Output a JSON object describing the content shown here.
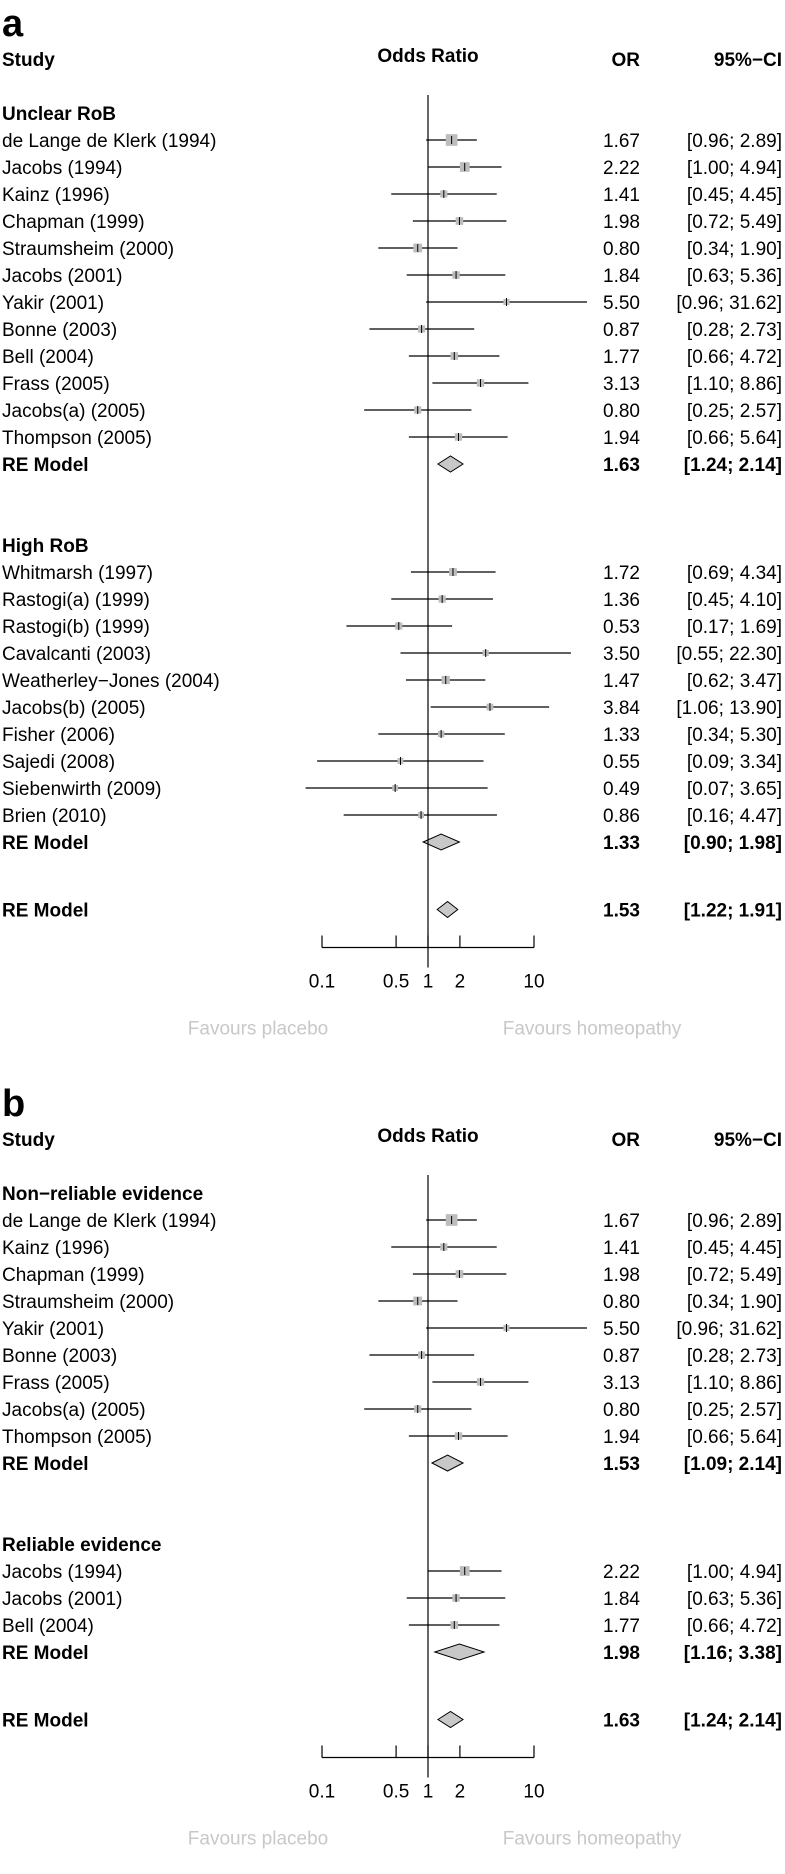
{
  "chart_data": [
    {
      "type": "forest",
      "panel": "a",
      "headers": {
        "study": "Study",
        "title": "Odds Ratio",
        "or": "OR",
        "ci": "95%−CI"
      },
      "groups": [
        {
          "label": "Unclear RoB",
          "studies": [
            {
              "name": "de Lange de Klerk (1994)",
              "or": 1.67,
              "lo": 0.96,
              "hi": 2.89,
              "weight": 3.2,
              "or_text": "1.67",
              "ci_text": "[0.96; 2.89]"
            },
            {
              "name": "Jacobs (1994)",
              "or": 2.22,
              "lo": 1.0,
              "hi": 4.94,
              "weight": 2.4,
              "or_text": "2.22",
              "ci_text": "[1.00; 4.94]"
            },
            {
              "name": "Kainz (1996)",
              "or": 1.41,
              "lo": 0.45,
              "hi": 4.45,
              "weight": 1.3,
              "or_text": "1.41",
              "ci_text": "[0.45; 4.45]"
            },
            {
              "name": "Chapman (1999)",
              "or": 1.98,
              "lo": 0.72,
              "hi": 5.49,
              "weight": 1.5,
              "or_text": "1.98",
              "ci_text": "[0.72; 5.49]"
            },
            {
              "name": "Straumsheim (2000)",
              "or": 0.8,
              "lo": 0.34,
              "hi": 1.9,
              "weight": 2.0,
              "or_text": "0.80",
              "ci_text": "[0.34; 1.90]"
            },
            {
              "name": "Jacobs (2001)",
              "or": 1.84,
              "lo": 0.63,
              "hi": 5.36,
              "weight": 1.4,
              "or_text": "1.84",
              "ci_text": "[0.63; 5.36]"
            },
            {
              "name": "Yakir (2001)",
              "or": 5.5,
              "lo": 0.96,
              "hi": 31.62,
              "weight": 0.9,
              "or_text": "5.50",
              "ci_text": "[0.96; 31.62]"
            },
            {
              "name": "Bonne (2003)",
              "or": 0.87,
              "lo": 0.28,
              "hi": 2.73,
              "weight": 1.3,
              "or_text": "0.87",
              "ci_text": "[0.28; 2.73]"
            },
            {
              "name": "Bell (2004)",
              "or": 1.77,
              "lo": 0.66,
              "hi": 4.72,
              "weight": 1.5,
              "or_text": "1.77",
              "ci_text": "[0.66; 4.72]"
            },
            {
              "name": "Frass (2005)",
              "or": 3.13,
              "lo": 1.1,
              "hi": 8.86,
              "weight": 1.4,
              "or_text": "3.13",
              "ci_text": "[1.10; 8.86]"
            },
            {
              "name": "Jacobs(a) (2005)",
              "or": 0.8,
              "lo": 0.25,
              "hi": 2.57,
              "weight": 1.3,
              "or_text": "0.80",
              "ci_text": "[0.25; 2.57]"
            },
            {
              "name": "Thompson (2005)",
              "or": 1.94,
              "lo": 0.66,
              "hi": 5.64,
              "weight": 1.4,
              "or_text": "1.94",
              "ci_text": "[0.66; 5.64]"
            }
          ],
          "re_model": {
            "label": "RE Model",
            "or": 1.63,
            "lo": 1.24,
            "hi": 2.14,
            "or_text": "1.63",
            "ci_text": "[1.24; 2.14]"
          }
        },
        {
          "label": "High RoB",
          "studies": [
            {
              "name": "Whitmarsh (1997)",
              "or": 1.72,
              "lo": 0.69,
              "hi": 4.34,
              "weight": 1.6,
              "or_text": "1.72",
              "ci_text": "[0.69; 4.34]"
            },
            {
              "name": "Rastogi(a) (1999)",
              "or": 1.36,
              "lo": 0.45,
              "hi": 4.1,
              "weight": 1.3,
              "or_text": "1.36",
              "ci_text": "[0.45; 4.10]"
            },
            {
              "name": "Rastogi(b) (1999)",
              "or": 0.53,
              "lo": 0.17,
              "hi": 1.69,
              "weight": 1.3,
              "or_text": "0.53",
              "ci_text": "[0.17; 1.69]"
            },
            {
              "name": "Cavalcanti (2003)",
              "or": 3.5,
              "lo": 0.55,
              "hi": 22.3,
              "weight": 0.9,
              "or_text": "3.50",
              "ci_text": "[0.55; 22.30]"
            },
            {
              "name": "Weatherley−Jones (2004)",
              "or": 1.47,
              "lo": 0.62,
              "hi": 3.47,
              "weight": 1.8,
              "or_text": "1.47",
              "ci_text": "[0.62; 3.47]"
            },
            {
              "name": "Jacobs(b) (2005)",
              "or": 3.84,
              "lo": 1.06,
              "hi": 13.9,
              "weight": 1.1,
              "or_text": "3.84",
              "ci_text": "[1.06; 13.90]"
            },
            {
              "name": "Fisher (2006)",
              "or": 1.33,
              "lo": 0.34,
              "hi": 5.3,
              "weight": 1.0,
              "or_text": "1.33",
              "ci_text": "[0.34; 5.30]"
            },
            {
              "name": "Sajedi (2008)",
              "or": 0.55,
              "lo": 0.09,
              "hi": 3.34,
              "weight": 0.8,
              "or_text": "0.55",
              "ci_text": "[0.09; 3.34]"
            },
            {
              "name": "Siebenwirth (2009)",
              "or": 0.49,
              "lo": 0.07,
              "hi": 3.65,
              "weight": 0.8,
              "or_text": "0.49",
              "ci_text": "[0.07; 3.65]"
            },
            {
              "name": "Brien (2010)",
              "or": 0.86,
              "lo": 0.16,
              "hi": 4.47,
              "weight": 0.8,
              "or_text": "0.86",
              "ci_text": "[0.16; 4.47]"
            }
          ],
          "re_model": {
            "label": "RE Model",
            "or": 1.33,
            "lo": 0.9,
            "hi": 1.98,
            "or_text": "1.33",
            "ci_text": "[0.90; 1.98]"
          }
        }
      ],
      "overall": {
        "label": "RE Model",
        "or": 1.53,
        "lo": 1.22,
        "hi": 1.91,
        "or_text": "1.53",
        "ci_text": "[1.22; 1.91]"
      },
      "x_axis": {
        "scale": "log",
        "ticks": [
          0.1,
          0.5,
          1,
          2,
          10
        ],
        "tick_labels": [
          "0.1",
          "0.5",
          "1",
          "2",
          "10"
        ],
        "null_value": 1
      },
      "favours_left": "Favours placebo",
      "favours_right": "Favours homeopathy"
    },
    {
      "type": "forest",
      "panel": "b",
      "headers": {
        "study": "Study",
        "title": "Odds Ratio",
        "or": "OR",
        "ci": "95%−CI"
      },
      "groups": [
        {
          "label": "Non−reliable evidence",
          "studies": [
            {
              "name": "de Lange de Klerk (1994)",
              "or": 1.67,
              "lo": 0.96,
              "hi": 2.89,
              "weight": 3.2,
              "or_text": "1.67",
              "ci_text": "[0.96; 2.89]"
            },
            {
              "name": "Kainz (1996)",
              "or": 1.41,
              "lo": 0.45,
              "hi": 4.45,
              "weight": 1.3,
              "or_text": "1.41",
              "ci_text": "[0.45; 4.45]"
            },
            {
              "name": "Chapman (1999)",
              "or": 1.98,
              "lo": 0.72,
              "hi": 5.49,
              "weight": 1.5,
              "or_text": "1.98",
              "ci_text": "[0.72; 5.49]"
            },
            {
              "name": "Straumsheim (2000)",
              "or": 0.8,
              "lo": 0.34,
              "hi": 1.9,
              "weight": 2.0,
              "or_text": "0.80",
              "ci_text": "[0.34; 1.90]"
            },
            {
              "name": "Yakir (2001)",
              "or": 5.5,
              "lo": 0.96,
              "hi": 31.62,
              "weight": 0.9,
              "or_text": "5.50",
              "ci_text": "[0.96; 31.62]"
            },
            {
              "name": "Bonne (2003)",
              "or": 0.87,
              "lo": 0.28,
              "hi": 2.73,
              "weight": 1.3,
              "or_text": "0.87",
              "ci_text": "[0.28; 2.73]"
            },
            {
              "name": "Frass (2005)",
              "or": 3.13,
              "lo": 1.1,
              "hi": 8.86,
              "weight": 1.4,
              "or_text": "3.13",
              "ci_text": "[1.10; 8.86]"
            },
            {
              "name": "Jacobs(a) (2005)",
              "or": 0.8,
              "lo": 0.25,
              "hi": 2.57,
              "weight": 1.3,
              "or_text": "0.80",
              "ci_text": "[0.25; 2.57]"
            },
            {
              "name": "Thompson (2005)",
              "or": 1.94,
              "lo": 0.66,
              "hi": 5.64,
              "weight": 1.4,
              "or_text": "1.94",
              "ci_text": "[0.66; 5.64]"
            }
          ],
          "re_model": {
            "label": "RE Model",
            "or": 1.53,
            "lo": 1.09,
            "hi": 2.14,
            "or_text": "1.53",
            "ci_text": "[1.09; 2.14]"
          }
        },
        {
          "label": "Reliable evidence",
          "studies": [
            {
              "name": "Jacobs (1994)",
              "or": 2.22,
              "lo": 1.0,
              "hi": 4.94,
              "weight": 2.4,
              "or_text": "2.22",
              "ci_text": "[1.00; 4.94]"
            },
            {
              "name": "Jacobs (2001)",
              "or": 1.84,
              "lo": 0.63,
              "hi": 5.36,
              "weight": 1.4,
              "or_text": "1.84",
              "ci_text": "[0.63; 5.36]"
            },
            {
              "name": "Bell (2004)",
              "or": 1.77,
              "lo": 0.66,
              "hi": 4.72,
              "weight": 1.5,
              "or_text": "1.77",
              "ci_text": "[0.66; 4.72]"
            }
          ],
          "re_model": {
            "label": "RE Model",
            "or": 1.98,
            "lo": 1.16,
            "hi": 3.38,
            "or_text": "1.98",
            "ci_text": "[1.16; 3.38]"
          }
        }
      ],
      "overall": {
        "label": "RE Model",
        "or": 1.63,
        "lo": 1.24,
        "hi": 2.14,
        "or_text": "1.63",
        "ci_text": "[1.24; 2.14]"
      },
      "x_axis": {
        "scale": "log",
        "ticks": [
          0.1,
          0.5,
          1,
          2,
          10
        ],
        "tick_labels": [
          "0.1",
          "0.5",
          "1",
          "2",
          "10"
        ],
        "null_value": 1
      },
      "favours_left": "Favours placebo",
      "favours_right": "Favours homeopathy"
    }
  ]
}
